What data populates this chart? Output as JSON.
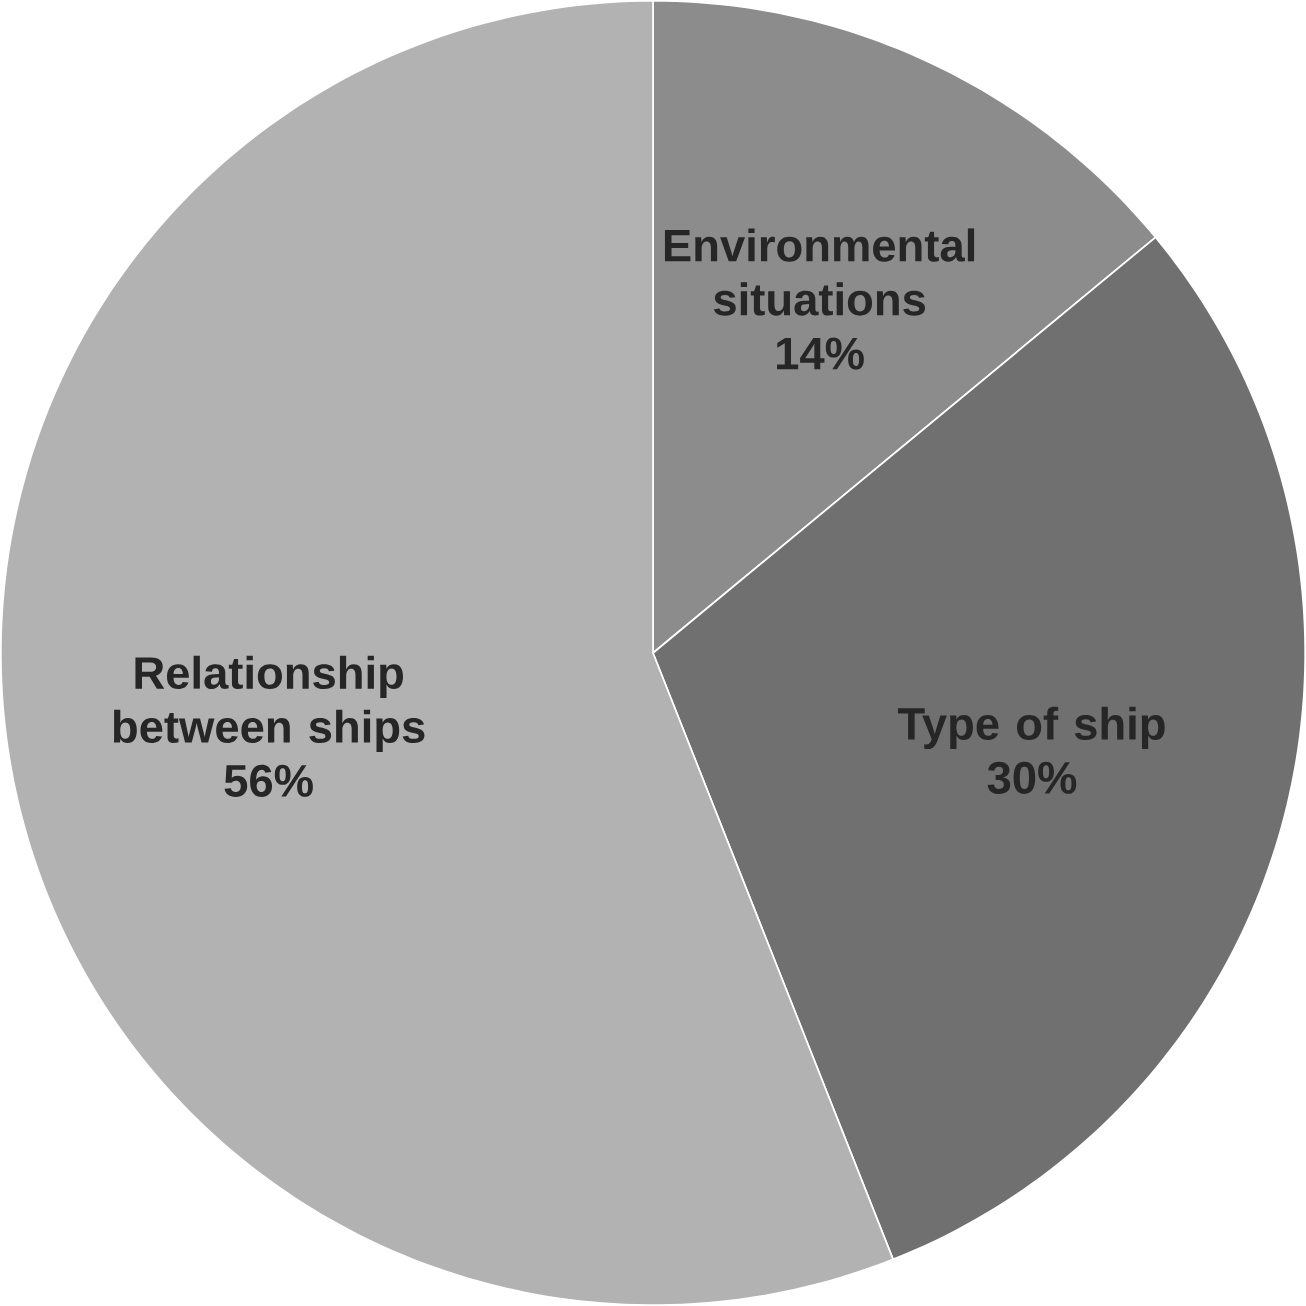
{
  "chart_data": {
    "type": "pie",
    "categories": [
      "Environmental situations",
      "Type of ship",
      "Relationship between ships"
    ],
    "values": [
      14,
      30,
      56
    ],
    "value_labels": [
      "14%",
      "30%",
      "56%"
    ],
    "colors": [
      "#8c8c8c",
      "#707070",
      "#b2b2b2"
    ]
  }
}
